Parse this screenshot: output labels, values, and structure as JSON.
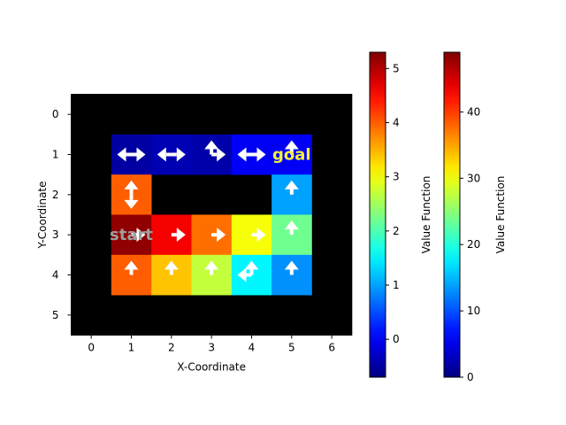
{
  "chart_data": {
    "type": "heatmap",
    "title": "",
    "xlabel": "X-Coordinate",
    "ylabel": "Y-Coordinate",
    "x_ticks": [
      "0",
      "1",
      "2",
      "3",
      "4",
      "5",
      "6"
    ],
    "y_ticks": [
      "0",
      "1",
      "2",
      "3",
      "4",
      "5"
    ],
    "grid": false,
    "wall_color": "#000000",
    "cells": [
      {
        "x": 1,
        "y": 1,
        "value": -0.5,
        "policy": "left-right"
      },
      {
        "x": 2,
        "y": 1,
        "value": -0.4,
        "policy": "left-right"
      },
      {
        "x": 3,
        "y": 1,
        "value": -0.45,
        "policy": "up-right"
      },
      {
        "x": 4,
        "y": 1,
        "value": 0.0,
        "policy": "left-right"
      },
      {
        "x": 5,
        "y": 1,
        "value": 0.0,
        "policy": "up"
      },
      {
        "x": 1,
        "y": 2,
        "value": 4.0,
        "policy": "up-down"
      },
      {
        "x": 5,
        "y": 2,
        "value": 1.0,
        "policy": "up"
      },
      {
        "x": 1,
        "y": 3,
        "value": 5.2,
        "policy": "right"
      },
      {
        "x": 2,
        "y": 3,
        "value": 4.6,
        "policy": "right"
      },
      {
        "x": 3,
        "y": 3,
        "value": 3.9,
        "policy": "right"
      },
      {
        "x": 4,
        "y": 3,
        "value": 3.0,
        "policy": "right"
      },
      {
        "x": 5,
        "y": 3,
        "value": 2.2,
        "policy": "up"
      },
      {
        "x": 1,
        "y": 4,
        "value": 4.0,
        "policy": "up"
      },
      {
        "x": 2,
        "y": 4,
        "value": 3.4,
        "policy": "up"
      },
      {
        "x": 3,
        "y": 4,
        "value": 2.7,
        "policy": "up"
      },
      {
        "x": 4,
        "y": 4,
        "value": 1.5,
        "policy": "up-left"
      },
      {
        "x": 5,
        "y": 4,
        "value": 0.9,
        "policy": "up"
      }
    ],
    "annotations": [
      {
        "text": "start",
        "x": 1,
        "y": 3,
        "color": "#9e9e9e"
      },
      {
        "text": "goal",
        "x": 5,
        "y": 1,
        "color": "#f5f03c"
      }
    ],
    "colorbars": [
      {
        "label": "Value Function",
        "range": [
          -0.7,
          5.3
        ],
        "ticks": [
          "0",
          "1",
          "2",
          "3",
          "4",
          "5"
        ],
        "tick_values": [
          0,
          1,
          2,
          3,
          4,
          5
        ]
      },
      {
        "label": "Value Function",
        "range": [
          0,
          49
        ],
        "ticks": [
          "0",
          "10",
          "20",
          "30",
          "40"
        ],
        "tick_values": [
          0,
          10,
          20,
          30,
          40
        ]
      }
    ],
    "colormap": "jet"
  }
}
